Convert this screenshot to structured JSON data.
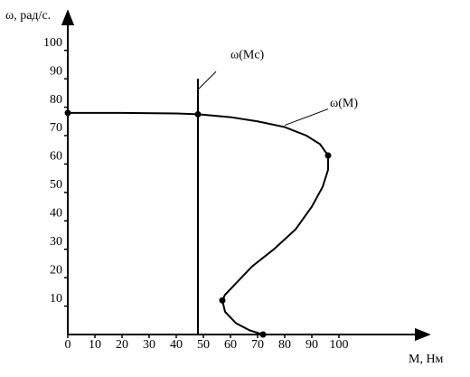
{
  "chart_data": {
    "type": "line",
    "x_label": "M, Нм",
    "y_label": "ω, рад/с.",
    "xlim": [
      0,
      130
    ],
    "ylim": [
      0,
      112
    ],
    "xticks": [
      0,
      10,
      20,
      30,
      40,
      50,
      60,
      70,
      80,
      90,
      100
    ],
    "yticks": [
      10,
      20,
      30,
      40,
      50,
      60,
      70,
      80,
      90,
      100
    ],
    "color": "#000000",
    "series": [
      {
        "name": "ω(M)",
        "x": [
          0,
          20,
          40,
          48,
          60,
          70,
          80,
          88,
          93,
          96,
          96,
          94,
          90,
          84,
          76,
          68,
          62,
          58,
          57,
          58,
          62,
          67,
          72
        ],
        "y": [
          78,
          78,
          77.8,
          77.5,
          76.5,
          75,
          73,
          70,
          67,
          63,
          58,
          52,
          45,
          37,
          30,
          24,
          18,
          14,
          12,
          8,
          4,
          1.5,
          0
        ]
      },
      {
        "name": "ω(Mc)",
        "x": [
          48,
          48
        ],
        "y": [
          0,
          90
        ]
      }
    ],
    "points": {
      "x": [
        0,
        48,
        96,
        57,
        72
      ],
      "y": [
        78,
        77.5,
        63,
        12,
        0
      ]
    }
  }
}
